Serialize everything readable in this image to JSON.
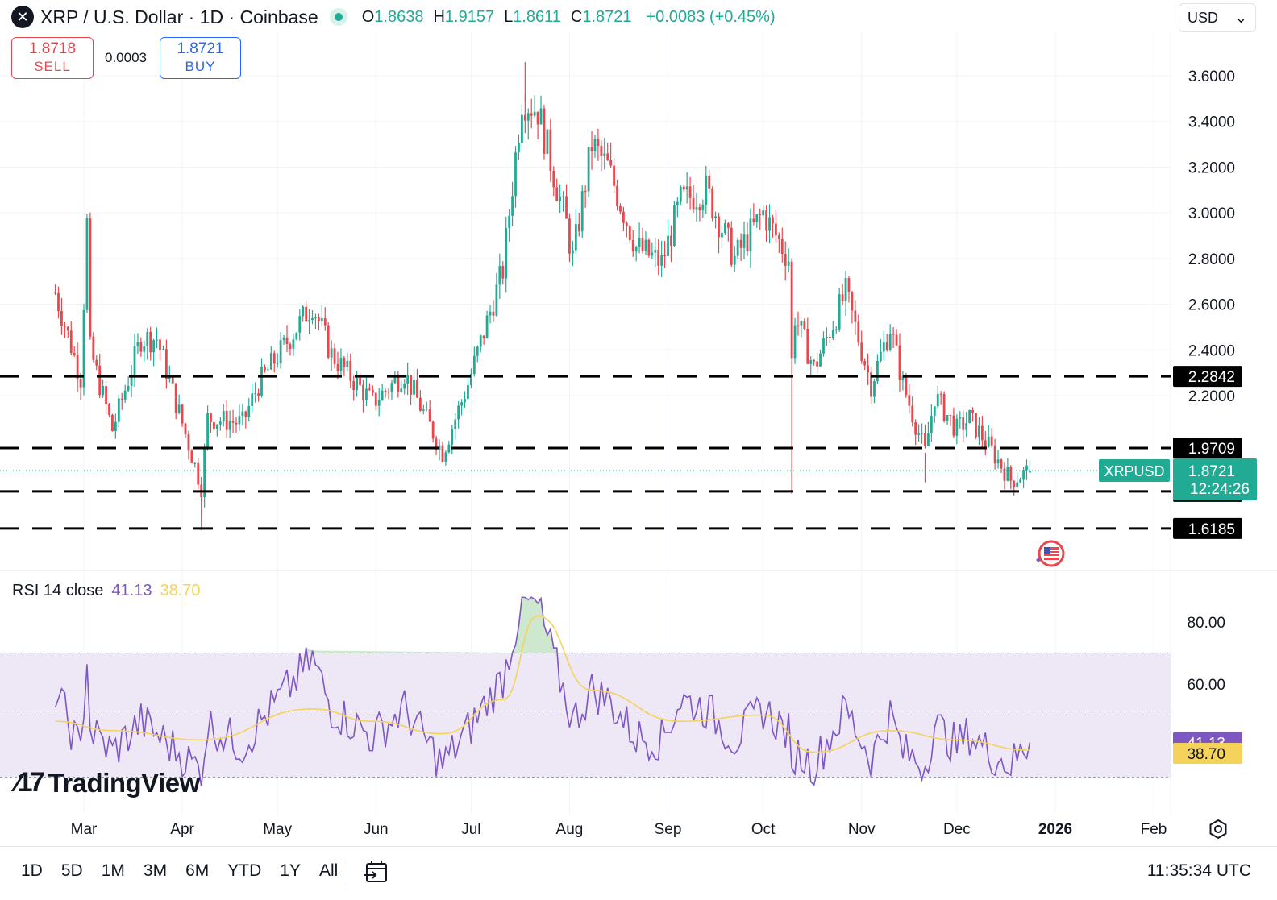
{
  "header": {
    "symbol_icon": "x-logo-icon",
    "title": "XRP / U.S. Dollar · 1D · Coinbase",
    "ohlc": [
      {
        "k": "O",
        "v": "1.8638"
      },
      {
        "k": "H",
        "v": "1.9157"
      },
      {
        "k": "L",
        "v": "1.8611"
      },
      {
        "k": "C",
        "v": "1.8721"
      }
    ],
    "change": "+0.0083 (+0.45%)",
    "currency": "USD"
  },
  "trade": {
    "sell_price": "1.8718",
    "sell_label": "SELL",
    "spread": "0.0003",
    "buy_price": "1.8721",
    "buy_label": "BUY"
  },
  "rsi": {
    "label": "RSI 14 close",
    "value": "41.13",
    "ma_value": "38.70"
  },
  "watermark": "TradingView",
  "bottom": {
    "ranges": [
      "1D",
      "5D",
      "1M",
      "3M",
      "6M",
      "YTD",
      "1Y",
      "All"
    ],
    "clock": "11:35:34 UTC"
  },
  "colors": {
    "up": "#22ab94",
    "down": "#e9474d",
    "rsi_line": "#7e57c2",
    "rsi_ma": "#f5d25b",
    "rsi_band": "#ede7f6",
    "grid": "#f0f3fa"
  },
  "chart_data": [
    {
      "type": "candlestick",
      "title": "XRP / U.S. Dollar · 1D · Coinbase",
      "ylim": [
        1.48,
        3.72
      ],
      "y_ticks": [
        "3.6000",
        "3.4000",
        "3.2000",
        "3.0000",
        "2.8000",
        "2.6000",
        "2.4000",
        "2.2000"
      ],
      "x_ticks": [
        "Mar",
        "Apr",
        "May",
        "Jun",
        "Jul",
        "Aug",
        "Sep",
        "Oct",
        "Nov",
        "Dec",
        "2026",
        "Feb"
      ],
      "support_resistance_levels": [
        {
          "value": 2.2842,
          "label": "2.2842"
        },
        {
          "value": 1.9709,
          "label": "1.9709"
        },
        {
          "value": 1.7807,
          "label": "1.7807"
        },
        {
          "value": 1.6185,
          "label": "1.6185"
        }
      ],
      "last_price": {
        "symbol": "XRPUSD",
        "value": 1.8721,
        "label": "1.8721",
        "countdown": "12:24:26"
      },
      "close_path": [
        [
          "Feb 20",
          2.65
        ],
        [
          "Feb 28",
          2.28
        ],
        [
          "Mar 2",
          2.95
        ],
        [
          "Mar 3",
          2.4
        ],
        [
          "Mar 10",
          2.05
        ],
        [
          "Mar 19",
          2.45
        ],
        [
          "Mar 24",
          2.45
        ],
        [
          "Apr 7",
          1.8
        ],
        [
          "Apr 9",
          2.1
        ],
        [
          "Apr 20",
          2.08
        ],
        [
          "Apr 25",
          2.25
        ],
        [
          "May 12",
          2.6
        ],
        [
          "May 18",
          2.38
        ],
        [
          "May 31",
          2.17
        ],
        [
          "Jun 10",
          2.3
        ],
        [
          "Jun 22",
          1.95
        ],
        [
          "Jun 30",
          2.25
        ],
        [
          "Jul 11",
          2.75
        ],
        [
          "Jul 17",
          3.5
        ],
        [
          "Jul 22",
          3.45
        ],
        [
          "Jul 31",
          2.95
        ],
        [
          "Aug 2",
          2.8
        ],
        [
          "Aug 8",
          3.3
        ],
        [
          "Aug 13",
          3.2
        ],
        [
          "Aug 22",
          2.85
        ],
        [
          "Aug 30",
          2.78
        ],
        [
          "Sep 5",
          3.05
        ],
        [
          "Sep 13",
          3.1
        ],
        [
          "Sep 22",
          2.8
        ],
        [
          "Oct 1",
          3.0
        ],
        [
          "Oct 9",
          2.8
        ],
        [
          "Oct 10",
          2.35
        ],
        [
          "Oct 11",
          2.55
        ],
        [
          "Oct 17",
          2.32
        ],
        [
          "Oct 27",
          2.65
        ],
        [
          "Nov 4",
          2.25
        ],
        [
          "Nov 10",
          2.5
        ],
        [
          "Nov 14",
          2.25
        ],
        [
          "Nov 21",
          1.95
        ],
        [
          "Nov 24",
          2.2
        ],
        [
          "Dec 1",
          2.05
        ],
        [
          "Dec 5",
          2.1
        ],
        [
          "Dec 11",
          1.98
        ],
        [
          "Dec 18",
          1.83
        ],
        [
          "Dec 24",
          1.8721
        ]
      ]
    },
    {
      "type": "line",
      "title": "RSI 14 close",
      "ylim": [
        25,
        95
      ],
      "y_ticks": [
        "80.00",
        "60.00"
      ],
      "band": [
        30,
        70
      ],
      "mid_line": 50,
      "series": [
        {
          "name": "RSI",
          "values": [
            [
              "Feb 20",
              58
            ],
            [
              "Feb 28",
              38
            ],
            [
              "Mar 2",
              70
            ],
            [
              "Mar 3",
              45
            ],
            [
              "Mar 10",
              38
            ],
            [
              "Mar 19",
              48
            ],
            [
              "Apr 7",
              32
            ],
            [
              "Apr 9",
              47
            ],
            [
              "Apr 20",
              40
            ],
            [
              "Apr 25",
              47
            ],
            [
              "May 12",
              68
            ],
            [
              "May 18",
              52
            ],
            [
              "May 31",
              43
            ],
            [
              "Jun 10",
              52
            ],
            [
              "Jun 22",
              34
            ],
            [
              "Jun 30",
              45
            ],
            [
              "Jul 11",
              62
            ],
            [
              "Jul 17",
              86
            ],
            [
              "Jul 22",
              85
            ],
            [
              "Jul 31",
              55
            ],
            [
              "Aug 2",
              48
            ],
            [
              "Aug 8",
              58
            ],
            [
              "Aug 13",
              55
            ],
            [
              "Aug 22",
              43
            ],
            [
              "Aug 30",
              42
            ],
            [
              "Sep 5",
              55
            ],
            [
              "Sep 13",
              52
            ],
            [
              "Sep 22",
              42
            ],
            [
              "Oct 1",
              52
            ],
            [
              "Oct 9",
              44
            ],
            [
              "Oct 10",
              28
            ],
            [
              "Oct 11",
              38
            ],
            [
              "Oct 17",
              34
            ],
            [
              "Oct 27",
              52
            ],
            [
              "Nov 4",
              36
            ],
            [
              "Nov 10",
              50
            ],
            [
              "Nov 14",
              38
            ],
            [
              "Nov 21",
              34
            ],
            [
              "Nov 24",
              47
            ],
            [
              "Dec 1",
              40
            ],
            [
              "Dec 5",
              44
            ],
            [
              "Dec 11",
              38
            ],
            [
              "Dec 18",
              34
            ],
            [
              "Dec 24",
              41.13
            ]
          ]
        },
        {
          "name": "RSI MA",
          "values": [
            [
              "Feb 20",
              48
            ],
            [
              "Mar 10",
              45
            ],
            [
              "Apr 7",
              42
            ],
            [
              "May 12",
              52
            ],
            [
              "May 31",
              48
            ],
            [
              "Jun 22",
              44
            ],
            [
              "Jul 11",
              55
            ],
            [
              "Jul 22",
              82
            ],
            [
              "Aug 8",
              58
            ],
            [
              "Sep 5",
              48
            ],
            [
              "Oct 1",
              50
            ],
            [
              "Oct 17",
              38
            ],
            [
              "Nov 10",
              45
            ],
            [
              "Dec 1",
              42
            ],
            [
              "Dec 24",
              38.7
            ]
          ]
        }
      ]
    }
  ]
}
